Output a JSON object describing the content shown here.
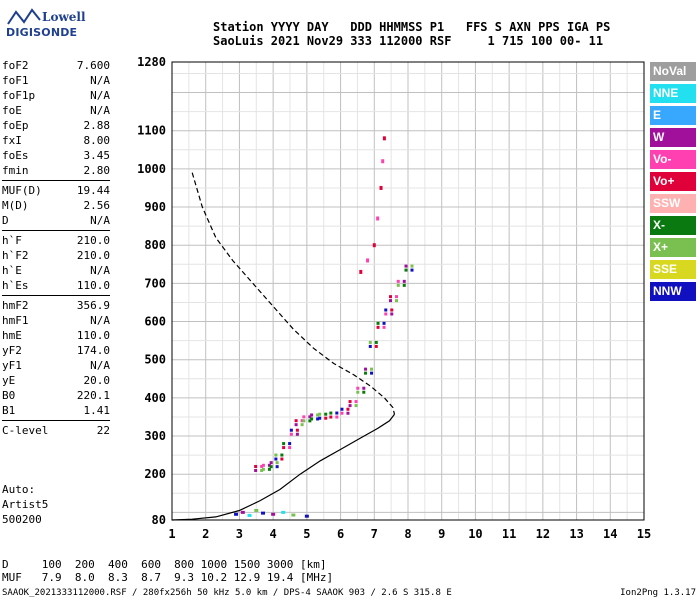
{
  "logo": {
    "line1": "Lowell",
    "line2": "DIGISONDE"
  },
  "header": {
    "labels_row": "Station YYYY DAY   DDD HHMMSS P1   FFS S AXN PPS IGA PS",
    "values_row": "SaoLuis 2021 Nov29 333 112000 RSF     1 715 100 00- 11"
  },
  "params": {
    "group1": [
      {
        "k": "foF2",
        "v": "7.600"
      },
      {
        "k": "foF1",
        "v": "N/A"
      },
      {
        "k": "foF1p",
        "v": "N/A"
      },
      {
        "k": "foE",
        "v": "N/A"
      },
      {
        "k": "foEp",
        "v": "2.88"
      },
      {
        "k": "fxI",
        "v": "8.00"
      },
      {
        "k": "foEs",
        "v": "3.45"
      },
      {
        "k": "fmin",
        "v": "2.80"
      }
    ],
    "group2": [
      {
        "k": "MUF(D)",
        "v": "19.44"
      },
      {
        "k": "M(D)",
        "v": "2.56"
      },
      {
        "k": "D",
        "v": "N/A"
      }
    ],
    "group3": [
      {
        "k": "h`F",
        "v": "210.0"
      },
      {
        "k": "h`F2",
        "v": "210.0"
      },
      {
        "k": "h`E",
        "v": "N/A"
      },
      {
        "k": "h`Es",
        "v": "110.0"
      }
    ],
    "group4": [
      {
        "k": "hmF2",
        "v": "356.9"
      },
      {
        "k": "hmF1",
        "v": "N/A"
      },
      {
        "k": "hmE",
        "v": "110.0"
      },
      {
        "k": "yF2",
        "v": "174.0"
      },
      {
        "k": "yF1",
        "v": "N/A"
      },
      {
        "k": "yE",
        "v": "20.0"
      },
      {
        "k": "B0",
        "v": "220.1"
      },
      {
        "k": "B1",
        "v": "1.41"
      }
    ],
    "group5": [
      {
        "k": "C-level",
        "v": "22"
      }
    ]
  },
  "auto": {
    "line1": "Auto:",
    "line2": "Artist5",
    "line3": "500200"
  },
  "legend": [
    {
      "label": "NoVal",
      "color": "#9e9e9e"
    },
    {
      "label": "NNE",
      "color": "#22e0f0"
    },
    {
      "label": "E",
      "color": "#38a8ff"
    },
    {
      "label": "W",
      "color": "#a0109a"
    },
    {
      "label": "Vo-",
      "color": "#ff40b0"
    },
    {
      "label": "Vo+",
      "color": "#e0003a"
    },
    {
      "label": "SSW",
      "color": "#ffb0b0"
    },
    {
      "label": "X-",
      "color": "#0a7a10"
    },
    {
      "label": "X+",
      "color": "#7ac050"
    },
    {
      "label": "SSE",
      "color": "#d8d820"
    },
    {
      "label": "NNW",
      "color": "#1010c0"
    }
  ],
  "bottom": {
    "d_row": "D     100  200  400  600  800 1000 1500 3000 [km]",
    "muf_row": "MUF   7.9  8.0  8.3  8.7  9.3 10.2 12.9 19.4 [MHz]"
  },
  "footer": "SAAOK_2021333112000.RSF / 280fx256h 50 kHz 5.0 km / DPS-4 SAAOK 903 / 2.6 S 315.8 E",
  "version": "Ion2Png 1.3.17",
  "chart_data": {
    "type": "scatter",
    "xlim": [
      1,
      15
    ],
    "ylim": [
      80,
      1280
    ],
    "x_ticks": [
      "1",
      "2",
      "3",
      "4",
      "5",
      "6",
      "7",
      "8",
      "9",
      "10",
      "11",
      "12",
      "13",
      "14",
      "15"
    ],
    "y_ticks": [
      "80",
      "200",
      "300",
      "400",
      "500",
      "600",
      "700",
      "800",
      "900",
      "1000",
      "1100",
      "1280"
    ],
    "grid": true,
    "trace_o": [
      [
        3.6,
        215
      ],
      [
        3.8,
        218
      ],
      [
        4.0,
        225
      ],
      [
        4.2,
        245
      ],
      [
        4.4,
        275
      ],
      [
        4.6,
        310
      ],
      [
        4.8,
        335
      ],
      [
        5.0,
        345
      ],
      [
        5.2,
        350
      ],
      [
        5.5,
        352
      ],
      [
        5.8,
        355
      ],
      [
        6.1,
        365
      ],
      [
        6.4,
        385
      ],
      [
        6.6,
        420
      ],
      [
        6.8,
        470
      ],
      [
        7.0,
        540
      ],
      [
        7.2,
        590
      ],
      [
        7.4,
        625
      ],
      [
        7.6,
        660
      ],
      [
        7.8,
        700
      ],
      [
        8.0,
        740
      ]
    ],
    "trace_x": [
      [
        6.6,
        730
      ],
      [
        6.8,
        760
      ],
      [
        7.0,
        800
      ],
      [
        7.1,
        870
      ],
      [
        7.2,
        950
      ],
      [
        7.25,
        1020
      ],
      [
        7.3,
        1080
      ]
    ],
    "dashed_profile": [
      [
        1.6,
        990
      ],
      [
        1.9,
        900
      ],
      [
        2.3,
        820
      ],
      [
        2.8,
        760
      ],
      [
        3.4,
        700
      ],
      [
        4.0,
        640
      ],
      [
        4.6,
        580
      ],
      [
        5.2,
        530
      ],
      [
        5.8,
        490
      ],
      [
        6.4,
        460
      ],
      [
        6.9,
        430
      ],
      [
        7.3,
        400
      ],
      [
        7.55,
        375
      ],
      [
        7.6,
        357
      ]
    ],
    "solid_profile": [
      [
        1.0,
        80
      ],
      [
        1.6,
        82
      ],
      [
        2.3,
        88
      ],
      [
        3.0,
        105
      ],
      [
        3.6,
        130
      ],
      [
        4.2,
        160
      ],
      [
        4.8,
        200
      ],
      [
        5.4,
        235
      ],
      [
        6.0,
        265
      ],
      [
        6.6,
        295
      ],
      [
        7.1,
        320
      ],
      [
        7.45,
        340
      ],
      [
        7.6,
        357
      ]
    ],
    "low_echoes": [
      [
        2.9,
        95
      ],
      [
        3.1,
        100
      ],
      [
        3.3,
        92
      ],
      [
        3.5,
        105
      ],
      [
        3.7,
        98
      ],
      [
        4.0,
        95
      ],
      [
        4.3,
        100
      ],
      [
        4.6,
        93
      ],
      [
        5.0,
        90
      ]
    ]
  }
}
